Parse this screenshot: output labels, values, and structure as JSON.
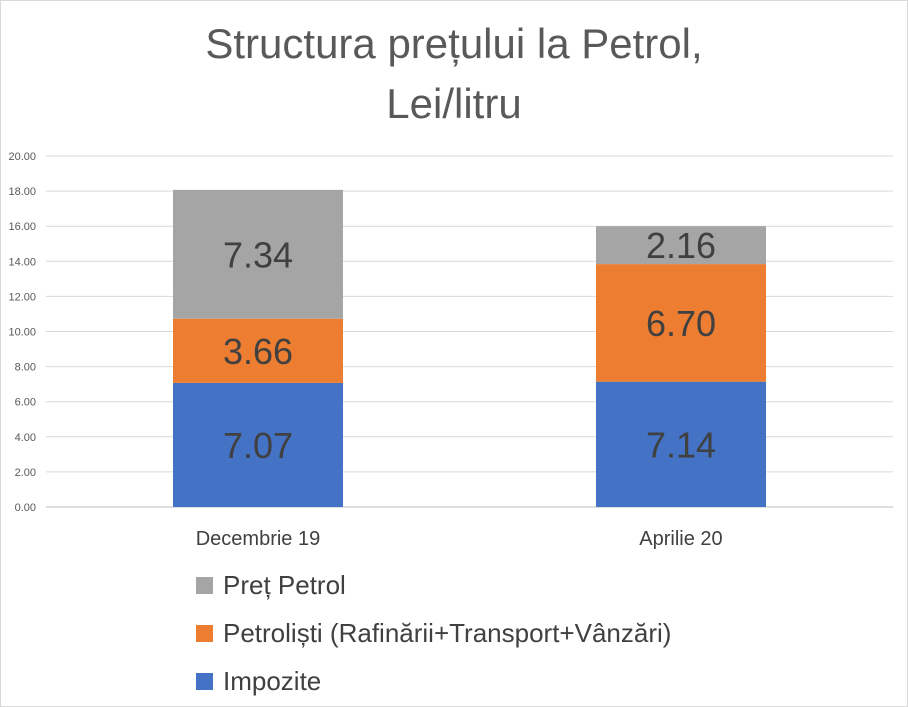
{
  "chart_data": {
    "type": "bar",
    "stacked": true,
    "title_lines": [
      "Structura prețului la Petrol,",
      "Lei/litru"
    ],
    "categories": [
      "Decembrie 19",
      "Aprilie 20"
    ],
    "ylim": [
      0,
      20
    ],
    "yticks": [
      "0.00",
      "2.00",
      "4.00",
      "6.00",
      "8.00",
      "10.00",
      "12.00",
      "14.00",
      "16.00",
      "18.00",
      "20.00"
    ],
    "grid": true,
    "legend_position": "bottom",
    "series": [
      {
        "name": "Impozite",
        "color": "#4472C4",
        "values": [
          7.07,
          7.14
        ],
        "labels": [
          "7.07",
          "7.14"
        ]
      },
      {
        "name": "Petroliști (Rafinării+Transport+Vânzări)",
        "color": "#ED7D31",
        "values": [
          3.66,
          6.7
        ],
        "labels": [
          "3.66",
          "6.70"
        ]
      },
      {
        "name": "Preț Petrol",
        "color": "#A5A5A5",
        "values": [
          7.34,
          2.16
        ],
        "labels": [
          "7.34",
          "2.16"
        ]
      }
    ]
  },
  "legend": {
    "items": [
      {
        "label": "Preț Petrol",
        "color": "#A5A5A5"
      },
      {
        "label": "Petroliști (Rafinării+Transport+Vânzări)",
        "color": "#ED7D31"
      },
      {
        "label": "Impozite",
        "color": "#4472C4"
      }
    ]
  }
}
